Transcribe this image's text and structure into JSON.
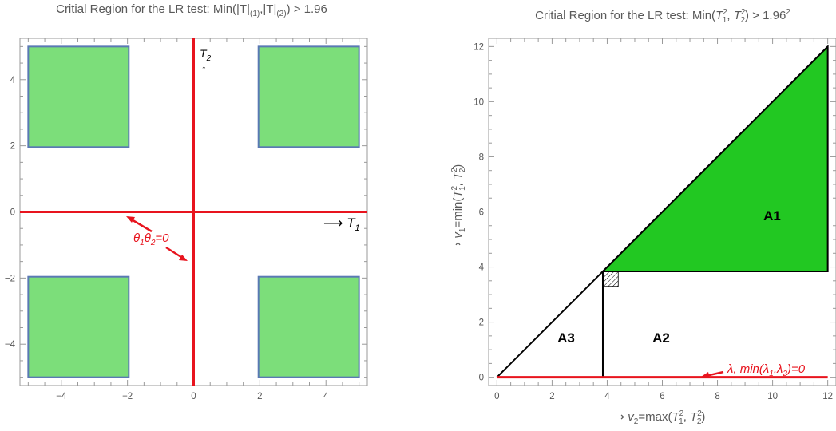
{
  "chart_data": [
    {
      "type": "region",
      "title": "Critial Region for the LR test: Min(|T|(1),|T|(2)) > 1.96",
      "xlim": [
        -5.25,
        5.25
      ],
      "ylim": [
        -5.25,
        5.25
      ],
      "xticks": [
        -4,
        -2,
        0,
        2,
        4
      ],
      "yticks": [
        -4,
        -2,
        0,
        2,
        4
      ],
      "xtick_labels": [
        "−4",
        "−2",
        "0",
        "2",
        "4"
      ],
      "ytick_labels": [
        "−4",
        "−2",
        "0",
        "2",
        "4"
      ],
      "squares": [
        {
          "x": [
            -5,
            -1.96
          ],
          "y": [
            1.96,
            5
          ]
        },
        {
          "x": [
            1.96,
            5
          ],
          "y": [
            1.96,
            5
          ]
        },
        {
          "x": [
            -5,
            -1.96
          ],
          "y": [
            -5,
            -1.96
          ]
        },
        {
          "x": [
            1.96,
            5
          ],
          "y": [
            -5,
            -1.96
          ]
        }
      ],
      "axis_labels": {
        "x": "⟶ T1",
        "y": "T2 ↑"
      },
      "annotation": "θ1θ2=0",
      "colors": {
        "fill": "#7cde7a",
        "edge": "#5a79b4",
        "line": "#e8141e"
      }
    },
    {
      "type": "region",
      "title": "Critial Region for the LR test: Min(T1², T2²) > 1.96²",
      "xlabel": "⟶ v2=max(T1², T2²)",
      "ylabel": "⟶ v1=min(T1², T2²)",
      "xlim": [
        -0.3,
        12.3
      ],
      "ylim": [
        -0.3,
        12.3
      ],
      "xticks": [
        0,
        2,
        4,
        6,
        8,
        10,
        12
      ],
      "yticks": [
        0,
        2,
        4,
        6,
        8,
        10,
        12
      ],
      "threshold": 3.8416,
      "region_A1": [
        [
          3.8416,
          3.8416
        ],
        [
          12,
          12
        ],
        [
          12,
          3.8416
        ]
      ],
      "regions": [
        "A1",
        "A2",
        "A3"
      ],
      "annotation": "λ, min(λ1,λ2)=0",
      "colors": {
        "fill": "#22c822",
        "line": "#e8141e"
      }
    }
  ]
}
